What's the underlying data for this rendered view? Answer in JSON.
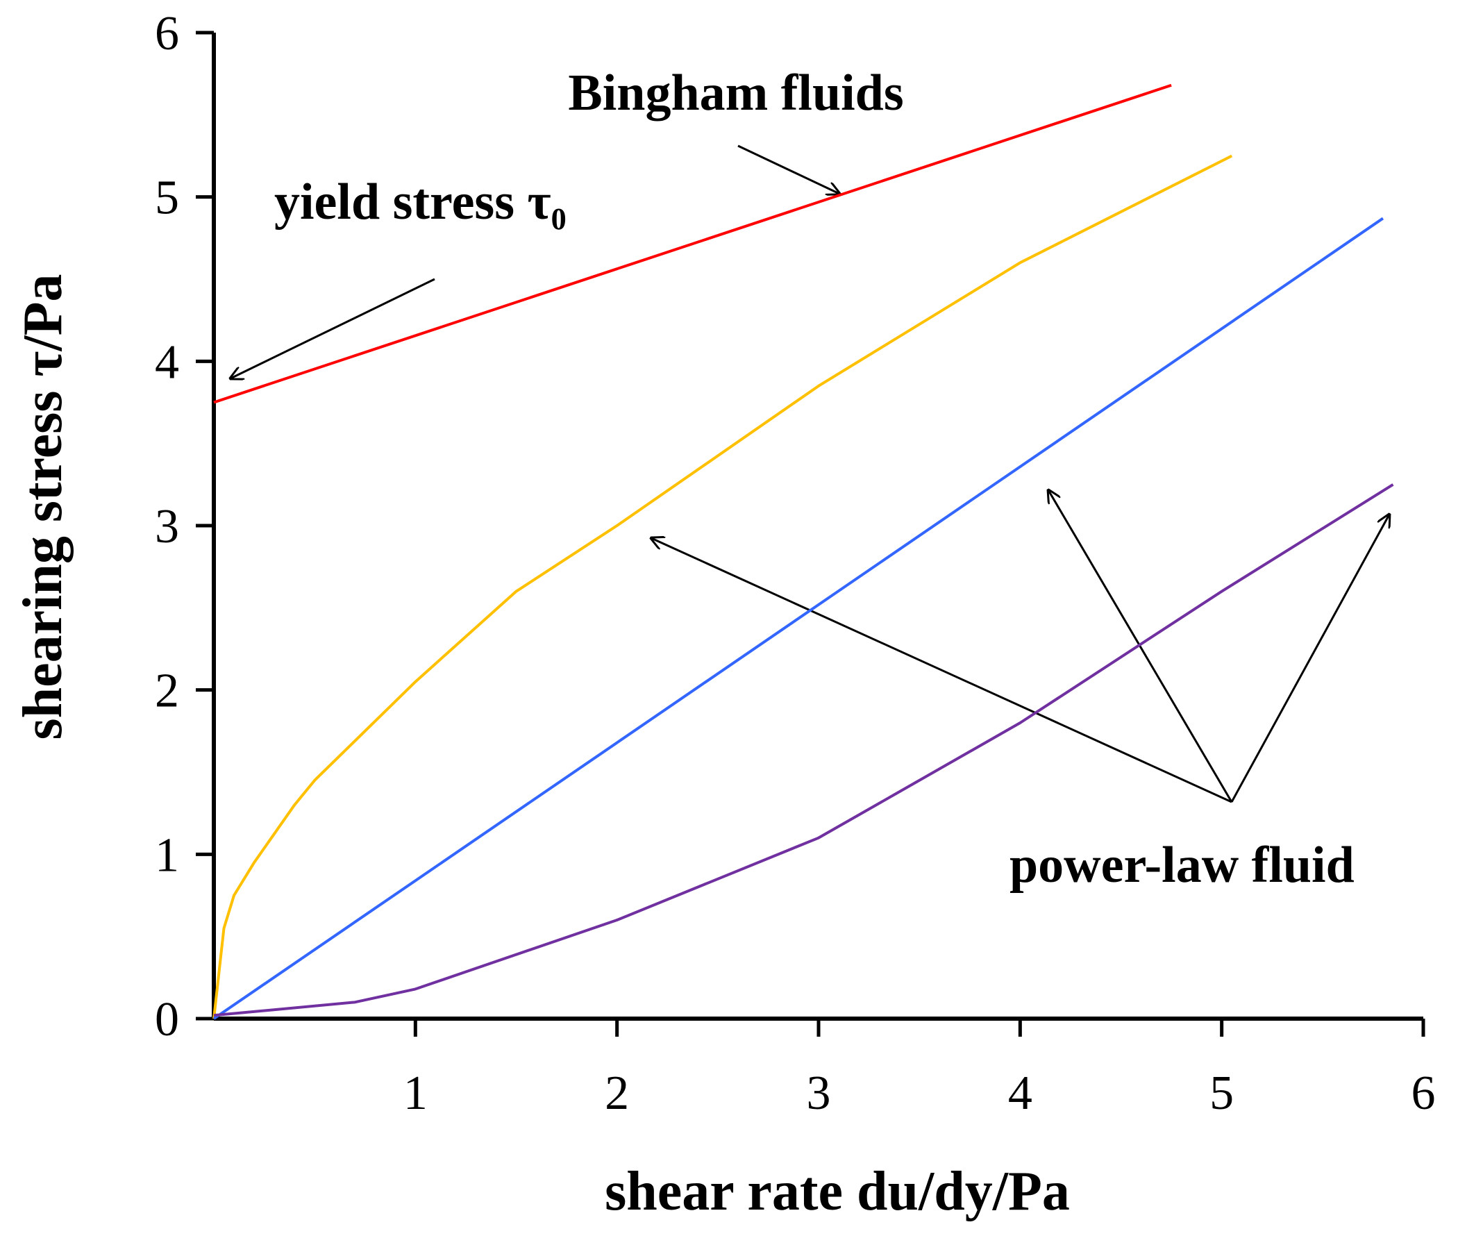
{
  "chart_data": {
    "type": "line",
    "x_label": "shear rate  du/dy/Pa",
    "y_label": "shearing stress  τ/Pa",
    "annotations": [
      "Bingham fluids",
      "yield stress τ₀",
      "power-law fluid"
    ],
    "xlim": [
      0,
      6
    ],
    "ylim": [
      0,
      6
    ],
    "xticks": [
      1,
      2,
      3,
      4,
      5,
      6
    ],
    "yticks": [
      0,
      1,
      2,
      3,
      4,
      5,
      6
    ],
    "series": [
      {
        "color": "#ff0000",
        "x": [
          0,
          4.75
        ],
        "values": [
          3.75,
          5.68
        ]
      },
      {
        "color": "#ffc000",
        "x": [
          0,
          0.05,
          0.1,
          0.2,
          0.4,
          0.5,
          1,
          1.5,
          2,
          3,
          4,
          5.05
        ],
        "values": [
          0,
          0.55,
          0.75,
          0.95,
          1.3,
          1.45,
          2.05,
          2.6,
          3.0,
          3.85,
          4.6,
          5.25
        ]
      },
      {
        "color": "#3366ff",
        "x": [
          0,
          5.8
        ],
        "values": [
          0,
          4.87
        ]
      },
      {
        "color": "#7030a0",
        "x": [
          0,
          0.7,
          1,
          2,
          3,
          4,
          5,
          5.85
        ],
        "values": [
          0.02,
          0.1,
          0.18,
          0.6,
          1.1,
          1.8,
          2.6,
          3.25
        ]
      }
    ]
  }
}
